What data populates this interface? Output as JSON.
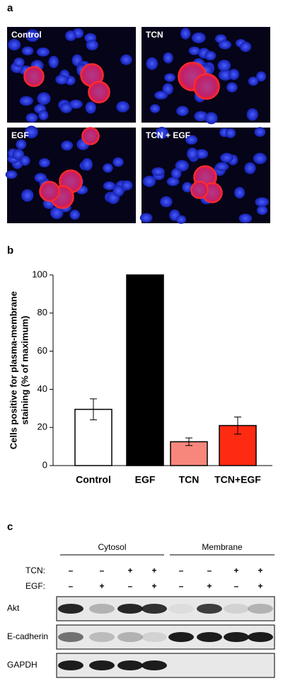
{
  "panel_labels": [
    "a",
    "b",
    "c"
  ],
  "images": [
    "Control",
    "TCN",
    "EGF",
    "TCN + EGF"
  ],
  "chart_data": {
    "type": "bar",
    "ylabel": [
      "Cells positive for plasma-membrane",
      "staining (% of maximum)"
    ],
    "categories": [
      "Control",
      "EGF",
      "TCN",
      "TCN+EGF"
    ],
    "values": [
      29.5,
      100,
      12.5,
      21
    ],
    "errors": [
      5.5,
      0,
      2,
      4.5
    ],
    "colors": [
      "#ffffff",
      "#000000",
      "#f7877c",
      "#ff2a12"
    ],
    "ylim": [
      0,
      100
    ],
    "yticks": [
      0,
      20,
      40,
      60,
      80,
      100
    ],
    "grid": false
  },
  "blot": {
    "fractions": [
      "Cytosol",
      "Membrane"
    ],
    "treatments": [
      {
        "label": "TCN:",
        "signs": [
          "–",
          "–",
          "+",
          "+",
          "–",
          "–",
          "+",
          "+"
        ]
      },
      {
        "label": "EGF:",
        "signs": [
          "–",
          "+",
          "–",
          "+",
          "–",
          "+",
          "–",
          "+"
        ]
      }
    ],
    "rows": [
      "Akt",
      "E-cadherin",
      "GAPDH"
    ]
  }
}
